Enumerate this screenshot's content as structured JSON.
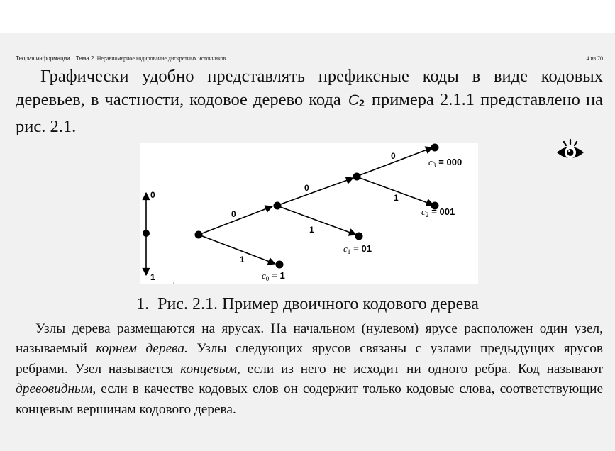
{
  "header": {
    "course": "Теория информации.",
    "topic_label": "Тема 2.",
    "topic_title": "Неравномерное кодирование дискретных источников",
    "page": "4 из 70"
  },
  "intro": {
    "part1": "Графически удобно представлять префиксные коды в виде кодовых деревьев, в частности, кодовое дерево кода",
    "code_letter": "C",
    "code_index": "2",
    "part2": "примера 2.1.1 представлено на рис. 2.1."
  },
  "figure": {
    "axis_top_label": "0",
    "axis_bottom_label": "1",
    "edge_labels": [
      "0",
      "1",
      "0",
      "1",
      "0",
      "1"
    ],
    "codewords": [
      {
        "letter": "c",
        "index": "3",
        "code": "= 000"
      },
      {
        "letter": "c",
        "index": "2",
        "code": "= 001"
      },
      {
        "letter": "c",
        "index": "1",
        "code": "= 01"
      },
      {
        "letter": "c",
        "index": "0",
        "code": "= 1"
      }
    ]
  },
  "eye_icon": "eye-icon",
  "caption": {
    "number": "1.",
    "text": "Рис. 2.1. Пример двоичного кодового дерева"
  },
  "body": {
    "s1": "Узлы дерева размещаются на ярусах. На начальном (нулевом) ярусе расположен один узел, называемый ",
    "term1": "корнем дерева.",
    "s2": " Узлы следующих ярусов связаны с узлами предыдущих ярусов ребрами. Узел называется ",
    "term2": "концевым,",
    "s3": " если из него не исходит ни одного ребра. Код называют ",
    "term3": "древовидным,",
    "s4": " если в качестве кодовых слов он содержит только кодовые слова, соответствующие концевым вершинам кодового дерева."
  },
  "colors": {
    "slide_bg": "#f1f1f1",
    "figure_bg": "#ffffff",
    "ink": "#111111"
  }
}
